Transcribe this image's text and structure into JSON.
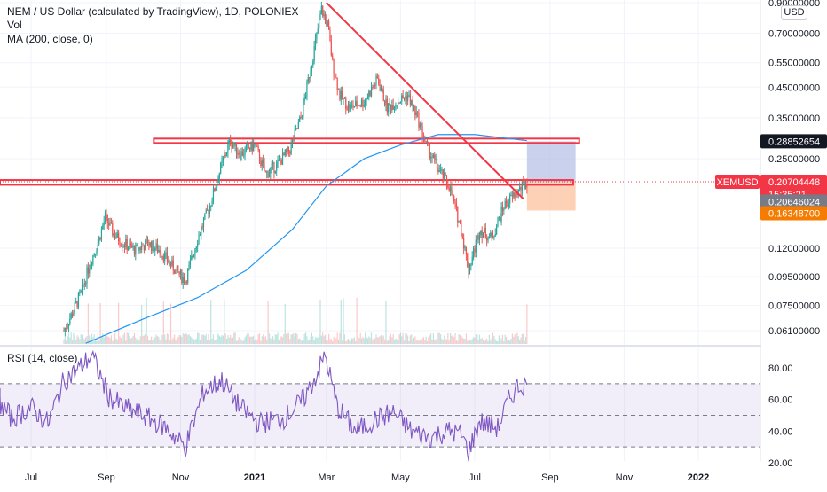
{
  "legend": {
    "title": "NEM / US Dollar (calculated by TradingView), 1D, POLONIEX",
    "vol": "Vol",
    "ma": "MA (200, close, 0)",
    "rsi": "RSI (14, close)"
  },
  "currency": "USD",
  "colors": {
    "up": "#26a69a",
    "down": "#ef5350",
    "ma": "#2196f3",
    "rsi": "#7e57c2",
    "trendline": "#f23645",
    "target_zone": "#b2bde6",
    "stop_zone": "#fdc9a8",
    "price_badge": "#f23645",
    "target_badge": "#131722",
    "entry_badge": "#787b86",
    "stop_badge": "#f57c00"
  },
  "chart_data": {
    "type": "candlestick",
    "scale": "log",
    "price_axis": {
      "tick_labels": [
        "0.90000000",
        "0.70000000",
        "0.55000000",
        "0.45000000",
        "0.35000000",
        "0.25000000",
        "0.12000000",
        "0.09500000",
        "0.07500000",
        "0.06100000"
      ],
      "ticks": [
        0.9,
        0.7,
        0.55,
        0.45,
        0.35,
        0.25,
        0.12,
        0.095,
        0.075,
        0.061
      ]
    },
    "time_axis": {
      "labels": [
        "Jul",
        "Sep",
        "Nov",
        "2021",
        "Mar",
        "May",
        "Jul",
        "Sep",
        "Nov",
        "2022"
      ],
      "bold": [
        "2021",
        "2022"
      ],
      "dates": [
        "2020-07-01",
        "2020-09-01",
        "2020-11-01",
        "2021-01-01",
        "2021-03-01",
        "2021-05-01",
        "2021-07-01",
        "2021-09-01",
        "2021-11-01",
        "2022-01-01"
      ]
    },
    "price_series": [
      {
        "date": "2020-07-28",
        "close": 0.061
      },
      {
        "date": "2020-08-05",
        "close": 0.072
      },
      {
        "date": "2020-08-12",
        "close": 0.085
      },
      {
        "date": "2020-08-18",
        "close": 0.105
      },
      {
        "date": "2020-08-25",
        "close": 0.125
      },
      {
        "date": "2020-08-31",
        "close": 0.155
      },
      {
        "date": "2020-09-07",
        "close": 0.135
      },
      {
        "date": "2020-09-15",
        "close": 0.125
      },
      {
        "date": "2020-09-25",
        "close": 0.118
      },
      {
        "date": "2020-10-05",
        "close": 0.125
      },
      {
        "date": "2020-10-15",
        "close": 0.118
      },
      {
        "date": "2020-10-28",
        "close": 0.1
      },
      {
        "date": "2020-11-05",
        "close": 0.092
      },
      {
        "date": "2020-11-15",
        "close": 0.13
      },
      {
        "date": "2020-11-25",
        "close": 0.17
      },
      {
        "date": "2020-12-05",
        "close": 0.24
      },
      {
        "date": "2020-12-12",
        "close": 0.29
      },
      {
        "date": "2020-12-20",
        "close": 0.26
      },
      {
        "date": "2021-01-01",
        "close": 0.28
      },
      {
        "date": "2021-01-10",
        "close": 0.22
      },
      {
        "date": "2021-01-20",
        "close": 0.24
      },
      {
        "date": "2021-01-30",
        "close": 0.27
      },
      {
        "date": "2021-02-08",
        "close": 0.35
      },
      {
        "date": "2021-02-15",
        "close": 0.5
      },
      {
        "date": "2021-02-20",
        "close": 0.65
      },
      {
        "date": "2021-02-25",
        "close": 0.85
      },
      {
        "date": "2021-03-02",
        "close": 0.75
      },
      {
        "date": "2021-03-06",
        "close": 0.55
      },
      {
        "date": "2021-03-12",
        "close": 0.42
      },
      {
        "date": "2021-03-20",
        "close": 0.38
      },
      {
        "date": "2021-04-01",
        "close": 0.4
      },
      {
        "date": "2021-04-12",
        "close": 0.48
      },
      {
        "date": "2021-04-20",
        "close": 0.38
      },
      {
        "date": "2021-04-28",
        "close": 0.4
      },
      {
        "date": "2021-05-07",
        "close": 0.42
      },
      {
        "date": "2021-05-15",
        "close": 0.35
      },
      {
        "date": "2021-05-22",
        "close": 0.28
      },
      {
        "date": "2021-06-01",
        "close": 0.23
      },
      {
        "date": "2021-06-10",
        "close": 0.2
      },
      {
        "date": "2021-06-20",
        "close": 0.14
      },
      {
        "date": "2021-06-26",
        "close": 0.1
      },
      {
        "date": "2021-07-05",
        "close": 0.14
      },
      {
        "date": "2021-07-15",
        "close": 0.13
      },
      {
        "date": "2021-07-25",
        "close": 0.17
      },
      {
        "date": "2021-08-05",
        "close": 0.19
      },
      {
        "date": "2021-08-13",
        "close": 0.207
      }
    ],
    "ma200": [
      {
        "date": "2020-08-15",
        "value": 0.055
      },
      {
        "date": "2020-10-01",
        "value": 0.067
      },
      {
        "date": "2020-11-15",
        "value": 0.08
      },
      {
        "date": "2020-12-25",
        "value": 0.1
      },
      {
        "date": "2021-02-01",
        "value": 0.14
      },
      {
        "date": "2021-03-01",
        "value": 0.2
      },
      {
        "date": "2021-04-01",
        "value": 0.25
      },
      {
        "date": "2021-05-01",
        "value": 0.28
      },
      {
        "date": "2021-06-01",
        "value": 0.305
      },
      {
        "date": "2021-07-01",
        "value": 0.305
      },
      {
        "date": "2021-08-13",
        "value": 0.29
      }
    ],
    "horizontal_zones": [
      {
        "name": "resistance",
        "low": 0.285,
        "high": 0.295,
        "from": "2020-10-10",
        "to": "2021-09-25"
      },
      {
        "name": "support",
        "low": 0.202,
        "high": 0.21,
        "from": "2020-06-01",
        "to": "2021-09-20"
      }
    ],
    "trendline": {
      "from_date": "2021-03-01",
      "from_value": 0.9,
      "to_date": "2021-08-10",
      "to_value": 0.18
    },
    "position": {
      "start": "2021-08-13",
      "end": "2021-09-22",
      "target": 0.28852654,
      "entry": 0.20646024,
      "stop": 0.163487
    },
    "price_labels": [
      {
        "name": "target",
        "text": "0.28852654",
        "value": 0.28852654
      },
      {
        "name": "last",
        "symbol": "XEMUSD",
        "text": "0.20704448",
        "countdown": "15:35:21",
        "value": 0.20704448
      },
      {
        "name": "entry",
        "text": "0.20646024",
        "value": 0.20646024
      },
      {
        "name": "stop",
        "text": "0.16348700",
        "value": 0.163487
      }
    ],
    "rsi": {
      "tick_labels": [
        "80.00",
        "60.00",
        "40.00",
        "20.00"
      ],
      "ticks": [
        80,
        60,
        40,
        20
      ],
      "upper_band": 70,
      "mid": 50,
      "lower_band": 30,
      "series": [
        {
          "date": "2020-06-01",
          "value": 62
        },
        {
          "date": "2020-06-15",
          "value": 48
        },
        {
          "date": "2020-07-01",
          "value": 55
        },
        {
          "date": "2020-07-15",
          "value": 45
        },
        {
          "date": "2020-07-28",
          "value": 72
        },
        {
          "date": "2020-08-10",
          "value": 80
        },
        {
          "date": "2020-08-20",
          "value": 88
        },
        {
          "date": "2020-09-03",
          "value": 62
        },
        {
          "date": "2020-09-15",
          "value": 55
        },
        {
          "date": "2020-10-01",
          "value": 50
        },
        {
          "date": "2020-10-20",
          "value": 42
        },
        {
          "date": "2020-11-05",
          "value": 30
        },
        {
          "date": "2020-11-20",
          "value": 65
        },
        {
          "date": "2020-12-05",
          "value": 72
        },
        {
          "date": "2020-12-20",
          "value": 55
        },
        {
          "date": "2021-01-05",
          "value": 45
        },
        {
          "date": "2021-01-25",
          "value": 48
        },
        {
          "date": "2021-02-10",
          "value": 60
        },
        {
          "date": "2021-02-20",
          "value": 74
        },
        {
          "date": "2021-02-28",
          "value": 88
        },
        {
          "date": "2021-03-10",
          "value": 55
        },
        {
          "date": "2021-03-25",
          "value": 40
        },
        {
          "date": "2021-04-10",
          "value": 47
        },
        {
          "date": "2021-04-25",
          "value": 52
        },
        {
          "date": "2021-05-10",
          "value": 40
        },
        {
          "date": "2021-05-25",
          "value": 36
        },
        {
          "date": "2021-06-10",
          "value": 40
        },
        {
          "date": "2021-06-20",
          "value": 38
        },
        {
          "date": "2021-06-26",
          "value": 27
        },
        {
          "date": "2021-07-05",
          "value": 46
        },
        {
          "date": "2021-07-20",
          "value": 42
        },
        {
          "date": "2021-07-28",
          "value": 58
        },
        {
          "date": "2021-08-05",
          "value": 68
        },
        {
          "date": "2021-08-13",
          "value": 70
        }
      ]
    }
  }
}
